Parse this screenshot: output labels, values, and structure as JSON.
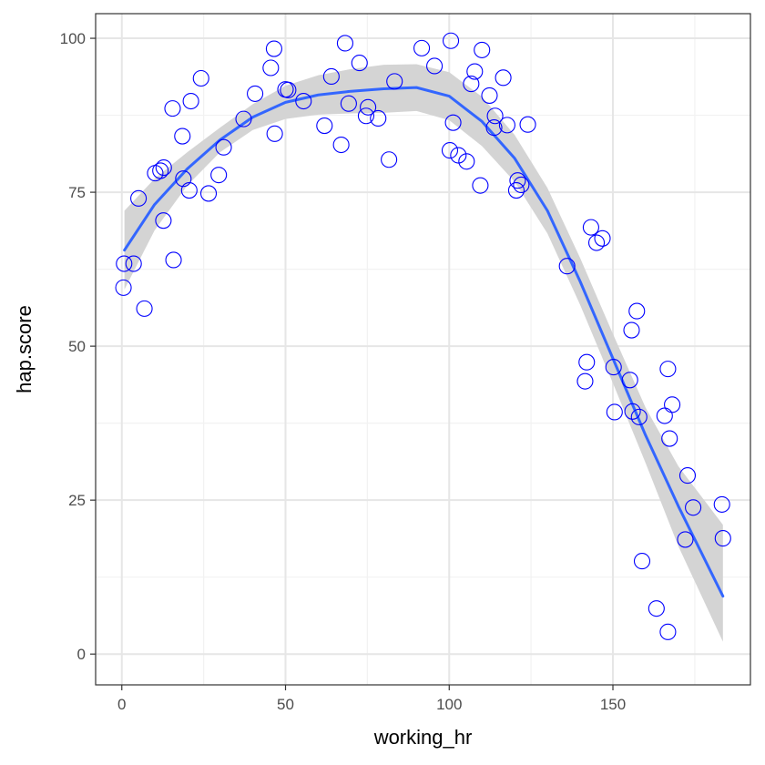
{
  "chart_data": {
    "type": "scatter",
    "title": "",
    "xlabel": "working_hr",
    "ylabel": "hap.score",
    "xlim": [
      -8,
      192
    ],
    "ylim": [
      -5,
      104
    ],
    "x_ticks": [
      0,
      50,
      100,
      150
    ],
    "y_ticks": [
      0,
      25,
      50,
      75,
      100
    ],
    "x_minor": [
      25,
      75,
      125,
      175
    ],
    "y_minor": [
      12.5,
      37.5,
      62.5,
      87.5
    ],
    "grid": true,
    "legend": "none",
    "colors": {
      "points": "#0000ff",
      "smooth_line": "#3366ff",
      "ribbon": "#d4d4d4",
      "grid_major": "#e6e6e6",
      "grid_minor": "#f2f2f2",
      "panel_border": "#333333"
    },
    "points": [
      [
        0.5,
        59.5
      ],
      [
        0.7,
        63.4
      ],
      [
        3.6,
        63.4
      ],
      [
        5.1,
        74.0
      ],
      [
        6.9,
        56.1
      ],
      [
        10.2,
        78.1
      ],
      [
        11.8,
        78.5
      ],
      [
        12.8,
        79.0
      ],
      [
        12.7,
        70.4
      ],
      [
        15.5,
        88.6
      ],
      [
        15.8,
        64.0
      ],
      [
        18.5,
        84.1
      ],
      [
        18.8,
        77.2
      ],
      [
        20.6,
        75.3
      ],
      [
        21.1,
        89.8
      ],
      [
        24.2,
        93.5
      ],
      [
        26.5,
        74.8
      ],
      [
        29.6,
        77.8
      ],
      [
        31.1,
        82.3
      ],
      [
        37.2,
        86.9
      ],
      [
        40.7,
        91.0
      ],
      [
        45.5,
        95.2
      ],
      [
        46.5,
        98.3
      ],
      [
        46.7,
        84.5
      ],
      [
        50.0,
        91.7
      ],
      [
        50.8,
        91.6
      ],
      [
        55.5,
        89.8
      ],
      [
        61.9,
        85.8
      ],
      [
        64.0,
        93.8
      ],
      [
        67.0,
        82.7
      ],
      [
        68.2,
        99.2
      ],
      [
        69.3,
        89.4
      ],
      [
        72.6,
        96.0
      ],
      [
        74.6,
        87.4
      ],
      [
        75.2,
        88.8
      ],
      [
        78.3,
        87.0
      ],
      [
        81.6,
        80.3
      ],
      [
        83.3,
        93.0
      ],
      [
        91.6,
        98.4
      ],
      [
        95.5,
        95.5
      ],
      [
        100.5,
        99.6
      ],
      [
        100.2,
        81.8
      ],
      [
        101.2,
        86.3
      ],
      [
        102.8,
        81.0
      ],
      [
        105.3,
        80.0
      ],
      [
        106.7,
        92.6
      ],
      [
        107.8,
        94.6
      ],
      [
        109.5,
        76.1
      ],
      [
        110.0,
        98.1
      ],
      [
        112.3,
        90.7
      ],
      [
        113.7,
        85.5
      ],
      [
        114.0,
        87.4
      ],
      [
        116.5,
        93.6
      ],
      [
        117.7,
        85.9
      ],
      [
        120.5,
        75.3
      ],
      [
        120.9,
        76.9
      ],
      [
        122.0,
        76.2
      ],
      [
        124.0,
        86.0
      ],
      [
        136.0,
        63.0
      ],
      [
        142.0,
        47.4
      ],
      [
        141.5,
        44.3
      ],
      [
        143.3,
        69.3
      ],
      [
        145.0,
        66.8
      ],
      [
        146.8,
        67.5
      ],
      [
        150.2,
        46.6
      ],
      [
        150.5,
        39.3
      ],
      [
        155.2,
        44.5
      ],
      [
        155.7,
        52.6
      ],
      [
        156.0,
        39.4
      ],
      [
        157.3,
        55.7
      ],
      [
        158.0,
        38.5
      ],
      [
        158.9,
        15.1
      ],
      [
        163.3,
        7.4
      ],
      [
        165.8,
        38.7
      ],
      [
        166.8,
        46.3
      ],
      [
        166.8,
        3.6
      ],
      [
        167.3,
        35.0
      ],
      [
        168.1,
        40.5
      ],
      [
        172.1,
        18.6
      ],
      [
        172.8,
        29.0
      ],
      [
        174.5,
        23.8
      ],
      [
        183.3,
        24.3
      ],
      [
        183.6,
        18.8
      ]
    ],
    "smooth_curve": [
      [
        0.8,
        65.6
      ],
      [
        10,
        73.0
      ],
      [
        20,
        78.8
      ],
      [
        30,
        83.5
      ],
      [
        40,
        87.2
      ],
      [
        50,
        89.6
      ],
      [
        60,
        90.8
      ],
      [
        70,
        91.4
      ],
      [
        80,
        91.8
      ],
      [
        90,
        92.0
      ],
      [
        100,
        90.6
      ],
      [
        110,
        86.5
      ],
      [
        120,
        80.5
      ],
      [
        130,
        72.0
      ],
      [
        140,
        60.5
      ],
      [
        150,
        48.0
      ],
      [
        160,
        35.5
      ],
      [
        170,
        24.0
      ],
      [
        183.6,
        9.4
      ]
    ],
    "ribbon_upper": [
      [
        0.8,
        72.0
      ],
      [
        10,
        77.2
      ],
      [
        20,
        81.5
      ],
      [
        30,
        85.5
      ],
      [
        40,
        89.3
      ],
      [
        50,
        92.3
      ],
      [
        60,
        94.0
      ],
      [
        70,
        95.0
      ],
      [
        80,
        95.7
      ],
      [
        90,
        95.8
      ],
      [
        100,
        94.5
      ],
      [
        110,
        90.5
      ],
      [
        120,
        84.3
      ],
      [
        130,
        75.7
      ],
      [
        140,
        64.3
      ],
      [
        150,
        52.0
      ],
      [
        160,
        40.0
      ],
      [
        170,
        30.5
      ],
      [
        183.6,
        21.0
      ]
    ],
    "ribbon_lower": [
      [
        0.8,
        59.2
      ],
      [
        10,
        68.8
      ],
      [
        20,
        76.1
      ],
      [
        30,
        81.5
      ],
      [
        40,
        85.1
      ],
      [
        50,
        86.9
      ],
      [
        60,
        87.6
      ],
      [
        70,
        87.8
      ],
      [
        80,
        87.9
      ],
      [
        90,
        88.2
      ],
      [
        100,
        86.7
      ],
      [
        110,
        82.5
      ],
      [
        120,
        76.7
      ],
      [
        130,
        68.3
      ],
      [
        140,
        56.7
      ],
      [
        150,
        44.0
      ],
      [
        160,
        31.0
      ],
      [
        170,
        17.5
      ],
      [
        183.6,
        2.0
      ]
    ]
  }
}
